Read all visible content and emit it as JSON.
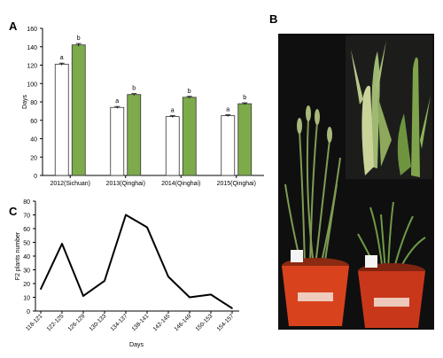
{
  "panels": {
    "a": "A",
    "b": "B",
    "c": "C"
  },
  "chart_data": [
    {
      "type": "bar",
      "panel": "A",
      "categories": [
        "2012(Sichuan)",
        "2013(Qinghai)",
        "2014(Qinghai)",
        "2015(Qinghai)"
      ],
      "series": [
        {
          "values": [
            121,
            74,
            64,
            65
          ],
          "errors": [
            1.2,
            1.0,
            1.0,
            1.0
          ],
          "letters": [
            "a",
            "a",
            "a",
            "a"
          ],
          "color": "#ffffff"
        },
        {
          "values": [
            142,
            88,
            85,
            78
          ],
          "errors": [
            1.5,
            1.0,
            1.0,
            1.0
          ],
          "letters": [
            "b",
            "b",
            "b",
            "b"
          ],
          "color": "#7dab4c"
        }
      ],
      "ylabel": "Days",
      "ylim": [
        0,
        160
      ],
      "yticks": [
        0,
        20,
        40,
        60,
        80,
        100,
        120,
        140,
        160
      ],
      "grid": false
    },
    {
      "type": "line",
      "panel": "C",
      "x": [
        "118-121",
        "122-125",
        "126-129",
        "130-133",
        "134-137",
        "138-141",
        "142-145",
        "146-149",
        "150-153",
        "154-157"
      ],
      "y": [
        16,
        49,
        11,
        22,
        70,
        61,
        25,
        10,
        12,
        2
      ],
      "xlabel": "Days",
      "ylabel": "F2 plants number",
      "ylim": [
        0,
        80
      ],
      "yticks": [
        0,
        10,
        20,
        30,
        40,
        50,
        60,
        70,
        80
      ],
      "grid": false
    }
  ],
  "photo": {
    "pot_colors": [
      "#d8431e",
      "#c9371a"
    ],
    "background": "#111111"
  }
}
